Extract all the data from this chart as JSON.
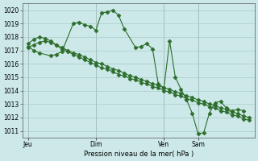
{
  "background_color": "#cce8e8",
  "grid_color": "#aacccc",
  "line_color": "#2d6e2d",
  "marker_color": "#2d6e2d",
  "xlabel": "Pression niveau de la mer( hPa )",
  "ylim": [
    1010.5,
    1020.5
  ],
  "yticks": [
    1011,
    1012,
    1013,
    1014,
    1015,
    1016,
    1017,
    1018,
    1019,
    1020
  ],
  "xtick_labels": [
    "Jeu",
    "Dim",
    "Ven",
    "Sam"
  ],
  "xtick_positions": [
    0,
    48,
    96,
    120
  ],
  "total_points": 132,
  "series": [
    [
      1017.5,
      1017.8,
      1018.0,
      1017.9,
      1017.7,
      1017.4,
      1017.1,
      1016.9,
      1016.7,
      1016.5,
      1016.3,
      1016.1,
      1015.9,
      1015.7,
      1015.6,
      1015.4,
      1015.2,
      1015.1,
      1014.9,
      1014.8,
      1014.6,
      1014.5,
      1014.3,
      1014.2,
      1014.0,
      1013.9,
      1013.7,
      1013.6,
      1013.4,
      1013.3,
      1013.1,
      1013.0,
      1012.8,
      1012.7,
      1012.5,
      1012.4,
      1012.2,
      1012.1,
      1011.9,
      1011.8
    ],
    [
      1017.2,
      1017.4,
      1017.6,
      1017.7,
      1017.6,
      1017.4,
      1017.2,
      1017.0,
      1016.8,
      1016.7,
      1016.5,
      1016.3,
      1016.1,
      1016.0,
      1015.8,
      1015.6,
      1015.5,
      1015.3,
      1015.1,
      1015.0,
      1014.8,
      1014.7,
      1014.5,
      1014.4,
      1014.2,
      1014.1,
      1013.9,
      1013.8,
      1013.6,
      1013.5,
      1013.3,
      1013.2,
      1013.0,
      1012.9,
      1012.7,
      1012.6,
      1012.4,
      1012.3,
      1012.1,
      1012.0
    ],
    [
      1017.3,
      1017.0,
      1016.8,
      1016.6,
      1016.7,
      1016.9,
      1019.0,
      1019.1,
      1018.9,
      1018.8,
      1018.5,
      1019.8,
      1019.85,
      1020.0,
      1019.6,
      1018.6,
      1017.2,
      1017.3,
      1017.5,
      1017.1,
      1014.5,
      1014.2,
      1017.7,
      1015.0,
      1014.1,
      1013.3,
      1012.3,
      1010.8,
      1010.85,
      1012.3,
      1013.1,
      1013.2,
      1012.7,
      1012.5,
      1012.6,
      1012.5
    ]
  ],
  "series_x": [
    [
      0,
      4,
      8,
      12,
      16,
      20,
      24,
      28,
      32,
      36,
      40,
      44,
      48,
      52,
      56,
      60,
      64,
      68,
      72,
      76,
      80,
      84,
      88,
      92,
      96,
      100,
      104,
      108,
      112,
      116,
      120,
      124,
      128,
      132,
      136,
      140,
      144,
      148,
      152,
      156
    ],
    [
      0,
      4,
      8,
      12,
      16,
      20,
      24,
      28,
      32,
      36,
      40,
      44,
      48,
      52,
      56,
      60,
      64,
      68,
      72,
      76,
      80,
      84,
      88,
      92,
      96,
      100,
      104,
      108,
      112,
      116,
      120,
      124,
      128,
      132,
      136,
      140,
      144,
      148,
      152,
      156
    ],
    [
      0,
      4,
      8,
      16,
      20,
      24,
      32,
      36,
      40,
      44,
      48,
      52,
      56,
      60,
      64,
      68,
      76,
      80,
      84,
      88,
      92,
      96,
      100,
      104,
      108,
      112,
      116,
      120,
      124,
      128,
      132,
      136,
      140,
      144,
      148,
      152
    ]
  ]
}
